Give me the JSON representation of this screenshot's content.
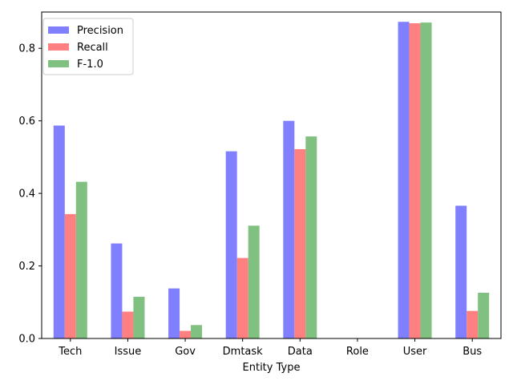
{
  "chart_data": {
    "type": "bar",
    "title": "",
    "xlabel": "Entity Type",
    "ylabel": "",
    "categories": [
      "Tech",
      "Issue",
      "Gov",
      "Dmtask",
      "Data",
      "Role",
      "User",
      "Bus"
    ],
    "series": [
      {
        "name": "Precision",
        "color": "#8080ff",
        "values": [
          0.587,
          0.262,
          0.138,
          0.516,
          0.6,
          0.0,
          0.873,
          0.366
        ]
      },
      {
        "name": "Recall",
        "color": "#ff8080",
        "values": [
          0.343,
          0.074,
          0.021,
          0.222,
          0.522,
          0.0,
          0.869,
          0.076
        ]
      },
      {
        "name": "F-1.0",
        "color": "#80c080",
        "values": [
          0.432,
          0.115,
          0.037,
          0.311,
          0.557,
          0.0,
          0.871,
          0.126
        ]
      }
    ],
    "ylim": [
      0,
      0.9
    ],
    "yticks": [
      0.0,
      0.2,
      0.4,
      0.6,
      0.8
    ],
    "yticks_labels": [
      "0.0",
      "0.2",
      "0.4",
      "0.6",
      "0.8"
    ],
    "grid": false,
    "legend": "top-left"
  }
}
